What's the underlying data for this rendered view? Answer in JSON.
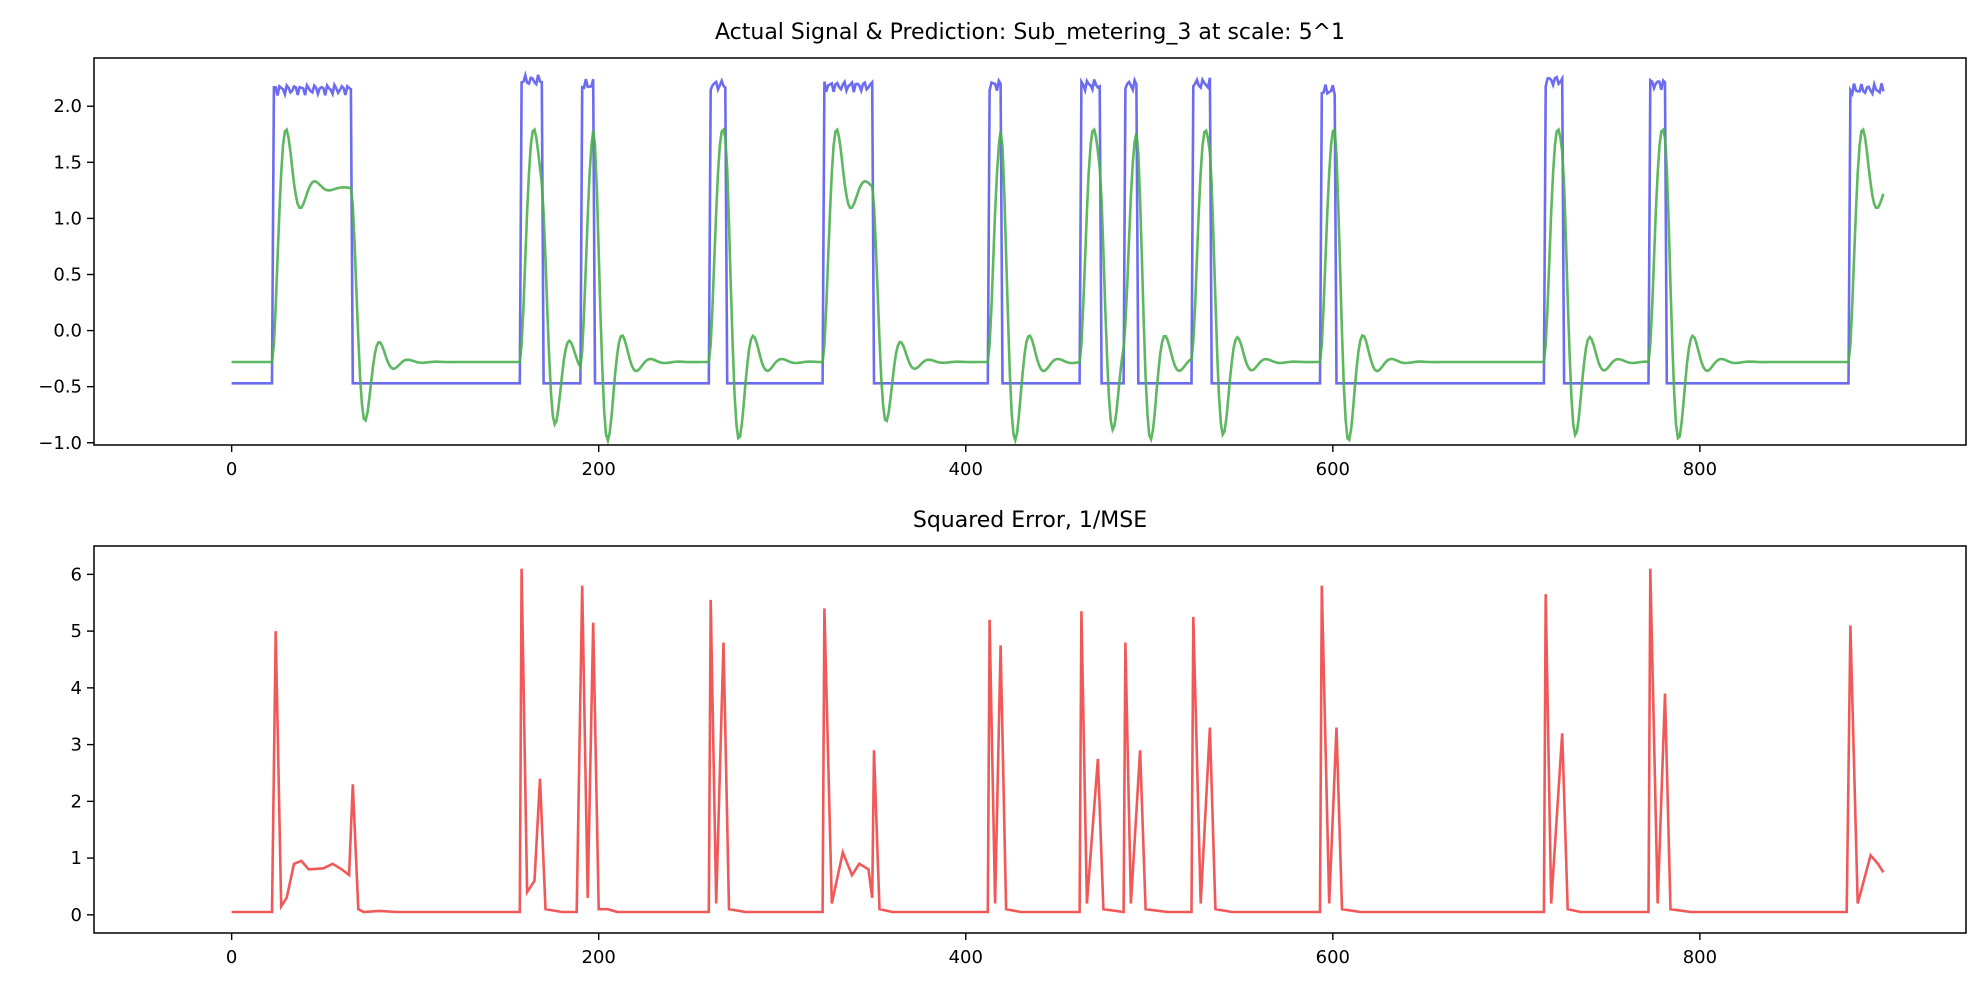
{
  "chart_data": [
    {
      "type": "line",
      "title": "Actual Signal & Prediction: Sub_metering_3 at scale: 5^1",
      "xlabel": "",
      "ylabel": "",
      "xlim": [
        -75,
        945
      ],
      "ylim": [
        -1.02,
        2.43
      ],
      "xticks": [
        0,
        200,
        400,
        600,
        800
      ],
      "yticks": [
        -1.0,
        -0.5,
        0.0,
        0.5,
        1.0,
        1.5,
        2.0
      ],
      "grid": false,
      "series": [
        {
          "color": "#6464f0",
          "values_note": "square pulses between base and high level",
          "base": -0.47,
          "high": 2.17,
          "pulses": [
            [
              23,
              65,
              2.15
            ],
            [
              158,
              169,
              2.23
            ],
            [
              191,
              197,
              2.19
            ],
            [
              261,
              269,
              2.19
            ],
            [
              323,
              349,
              2.18
            ],
            [
              413,
              419,
              2.19
            ],
            [
              463,
              473,
              2.19
            ],
            [
              487,
              493,
              2.19
            ],
            [
              524,
              533,
              2.2
            ],
            [
              594,
              601,
              2.14
            ],
            [
              716,
              725,
              2.23
            ],
            [
              773,
              781,
              2.2
            ],
            [
              882,
              900,
              2.15
            ]
          ]
        },
        {
          "color": "#4caf50",
          "base": -0.28,
          "peak": 1.85,
          "plateau": 1.27,
          "trough": -0.8
        }
      ]
    },
    {
      "type": "line",
      "title": "Squared Error, 1/MSE",
      "xlabel": "",
      "ylabel": "",
      "xlim": [
        -75,
        945
      ],
      "ylim": [
        -0.32,
        6.5
      ],
      "xticks": [
        0,
        200,
        400,
        600,
        800
      ],
      "yticks": [
        0,
        1,
        2,
        3,
        4,
        5,
        6
      ],
      "grid": false,
      "series": [
        {
          "color": "#f05050",
          "points": [
            [
              0,
              0.05
            ],
            [
              22,
              0.05
            ],
            [
              24,
              5.0
            ],
            [
              27,
              0.15
            ],
            [
              30,
              0.3
            ],
            [
              34,
              0.9
            ],
            [
              38,
              0.95
            ],
            [
              42,
              0.8
            ],
            [
              50,
              0.82
            ],
            [
              55,
              0.9
            ],
            [
              60,
              0.8
            ],
            [
              64,
              0.7
            ],
            [
              66,
              2.3
            ],
            [
              69,
              0.1
            ],
            [
              72,
              0.05
            ],
            [
              80,
              0.07
            ],
            [
              90,
              0.05
            ],
            [
              157,
              0.05
            ],
            [
              158,
              6.1
            ],
            [
              161,
              0.4
            ],
            [
              165,
              0.6
            ],
            [
              168,
              2.4
            ],
            [
              171,
              0.1
            ],
            [
              180,
              0.05
            ],
            [
              188,
              0.05
            ],
            [
              191,
              5.8
            ],
            [
              194,
              0.3
            ],
            [
              197,
              5.15
            ],
            [
              200,
              0.1
            ],
            [
              205,
              0.1
            ],
            [
              210,
              0.05
            ],
            [
              260,
              0.05
            ],
            [
              261,
              5.55
            ],
            [
              264,
              0.2
            ],
            [
              268,
              4.8
            ],
            [
              271,
              0.1
            ],
            [
              280,
              0.05
            ],
            [
              322,
              0.05
            ],
            [
              323,
              5.4
            ],
            [
              327,
              0.2
            ],
            [
              333,
              1.1
            ],
            [
              338,
              0.7
            ],
            [
              342,
              0.9
            ],
            [
              347,
              0.8
            ],
            [
              349,
              0.3
            ],
            [
              350,
              2.9
            ],
            [
              353,
              0.1
            ],
            [
              360,
              0.05
            ],
            [
              412,
              0.05
            ],
            [
              413,
              5.2
            ],
            [
              416,
              0.2
            ],
            [
              419,
              4.75
            ],
            [
              422,
              0.1
            ],
            [
              430,
              0.05
            ],
            [
              462,
              0.05
            ],
            [
              463,
              5.35
            ],
            [
              466,
              0.2
            ],
            [
              472,
              2.75
            ],
            [
              475,
              0.1
            ],
            [
              486,
              0.05
            ],
            [
              487,
              4.8
            ],
            [
              490,
              0.2
            ],
            [
              495,
              2.9
            ],
            [
              498,
              0.1
            ],
            [
              510,
              0.05
            ],
            [
              523,
              0.05
            ],
            [
              524,
              5.25
            ],
            [
              528,
              0.2
            ],
            [
              533,
              3.3
            ],
            [
              536,
              0.1
            ],
            [
              545,
              0.05
            ],
            [
              593,
              0.05
            ],
            [
              594,
              5.8
            ],
            [
              598,
              0.2
            ],
            [
              602,
              3.3
            ],
            [
              605,
              0.1
            ],
            [
              615,
              0.05
            ],
            [
              715,
              0.05
            ],
            [
              716,
              5.65
            ],
            [
              719,
              0.2
            ],
            [
              725,
              3.2
            ],
            [
              728,
              0.1
            ],
            [
              735,
              0.05
            ],
            [
              772,
              0.05
            ],
            [
              773,
              6.1
            ],
            [
              777,
              0.2
            ],
            [
              781,
              3.9
            ],
            [
              784,
              0.1
            ],
            [
              795,
              0.05
            ],
            [
              880,
              0.05
            ],
            [
              882,
              5.1
            ],
            [
              886,
              0.2
            ],
            [
              893,
              1.05
            ],
            [
              897,
              0.9
            ],
            [
              900,
              0.75
            ]
          ]
        }
      ]
    }
  ]
}
